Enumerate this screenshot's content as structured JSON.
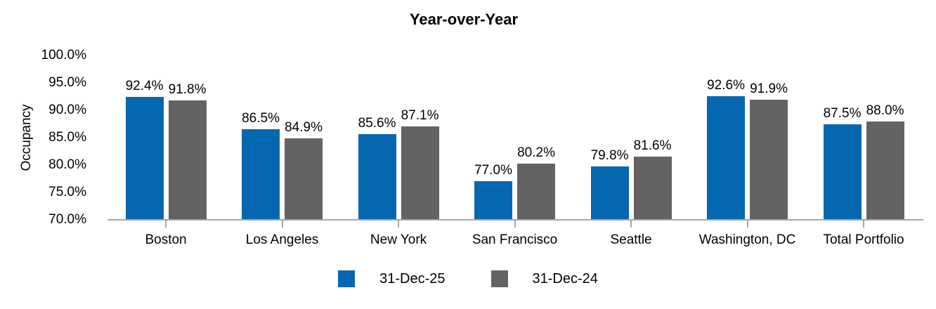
{
  "chart_data": {
    "type": "bar",
    "title": "Year-over-Year",
    "ylabel": "Occupancy",
    "xlabel": "",
    "categories": [
      "Boston",
      "Los Angeles",
      "New York",
      "San Francisco",
      "Seattle",
      "Washington, DC",
      "Total Portfolio"
    ],
    "series": [
      {
        "name": "31-Dec-25",
        "color": "#0667B1",
        "values": [
          92.4,
          86.5,
          85.6,
          77.0,
          79.8,
          92.6,
          87.5
        ]
      },
      {
        "name": "31-Dec-24",
        "color": "#636363",
        "values": [
          91.8,
          84.9,
          87.1,
          80.2,
          81.6,
          91.9,
          88.0
        ]
      }
    ],
    "ylim": [
      70,
      100
    ],
    "ytick_step": 5,
    "ytick_labels": [
      "70.0%",
      "75.0%",
      "80.0%",
      "85.0%",
      "90.0%",
      "95.0%",
      "100.0%"
    ],
    "data_labels_visible": true,
    "data_label_suffix": "%",
    "grid": false,
    "legend_position": "bottom",
    "axis_color": "#A6A6A6",
    "text_color": "#000000"
  }
}
